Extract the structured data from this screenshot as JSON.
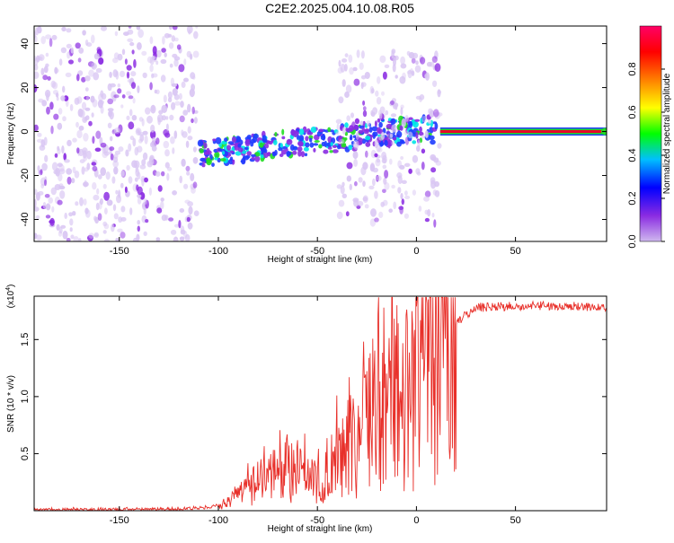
{
  "page": {
    "title": "C2E2.2025.004.10.08.R05"
  },
  "colors": {
    "snr_line": "#e8302a",
    "heatmap_faint": "#d9c6f3",
    "heatmap_purple": "#8a2be2",
    "heatmap_blue": "#1e3cff",
    "heatmap_cyan": "#00e5e5",
    "heatmap_green": "#22dd22",
    "tone_red": "#e8002a",
    "colorbar_scale": [
      "#cfb8ee",
      "#8a2be2",
      "#0000ff",
      "#00bfff",
      "#00ff00",
      "#ffff00",
      "#ff7f00",
      "#ff0000",
      "#ff0066"
    ]
  },
  "chart_data": [
    {
      "type": "heatmap",
      "xlabel": "Height of straight line (km)",
      "ylabel": "Frequency (Hz)",
      "xlim": [
        -193,
        96
      ],
      "ylim": [
        -50,
        48
      ],
      "xticks": [
        -150,
        -100,
        -50,
        0,
        50
      ],
      "yticks": [
        -40,
        -20,
        0,
        20,
        40
      ],
      "colorbar": {
        "label": "Normalized spectral amplitude",
        "range": [
          0,
          1
        ],
        "ticks": [
          0.0,
          0.2,
          0.4,
          0.6,
          0.8
        ]
      },
      "regions": [
        {
          "x": [
            -193,
            -110
          ],
          "y": [
            -50,
            48
          ],
          "level": "low"
        },
        {
          "x": [
            -110,
            10
          ],
          "y": [
            -17,
            8
          ],
          "level": "medium",
          "trend": "frequency rises from about -10 Hz to 0 Hz"
        },
        {
          "x": [
            -40,
            12
          ],
          "y": [
            -42,
            38
          ],
          "level": "low"
        },
        {
          "x": [
            12,
            96
          ],
          "y": [
            0,
            0
          ],
          "level": "high",
          "note": "steady tone at 0 Hz"
        }
      ]
    },
    {
      "type": "line",
      "title_prefix": "(x10",
      "title_exp": "4",
      "title_suffix": ")",
      "xlabel": "Height of straight line (km)",
      "ylabel": "SNR (10 * v/v)",
      "xlim": [
        -193,
        96
      ],
      "ylim": [
        0,
        1.88
      ],
      "xticks": [
        -150,
        -100,
        -50,
        0,
        50
      ],
      "yticks": [
        0.5,
        1.0,
        1.5
      ],
      "series": [
        {
          "x": [
            -193,
            -150,
            -110,
            -100,
            -95,
            -90,
            -85,
            -80,
            -75,
            -70,
            -65,
            -60,
            -55,
            -50,
            -45,
            -40,
            -35,
            -30,
            -25,
            -20,
            -15,
            -10,
            -5,
            0,
            5,
            10,
            15,
            20,
            25,
            30,
            40,
            50,
            60,
            70,
            80,
            90,
            96
          ],
          "y": [
            0.01,
            0.01,
            0.02,
            0.04,
            0.07,
            0.12,
            0.18,
            0.24,
            0.28,
            0.33,
            0.38,
            0.31,
            0.28,
            0.36,
            0.3,
            0.44,
            0.52,
            0.6,
            0.72,
            0.9,
            0.78,
            1.0,
            1.05,
            1.15,
            1.3,
            1.45,
            1.55,
            1.65,
            1.72,
            1.78,
            1.79,
            1.79,
            1.8,
            1.79,
            1.79,
            1.79,
            1.78
          ]
        }
      ]
    }
  ]
}
